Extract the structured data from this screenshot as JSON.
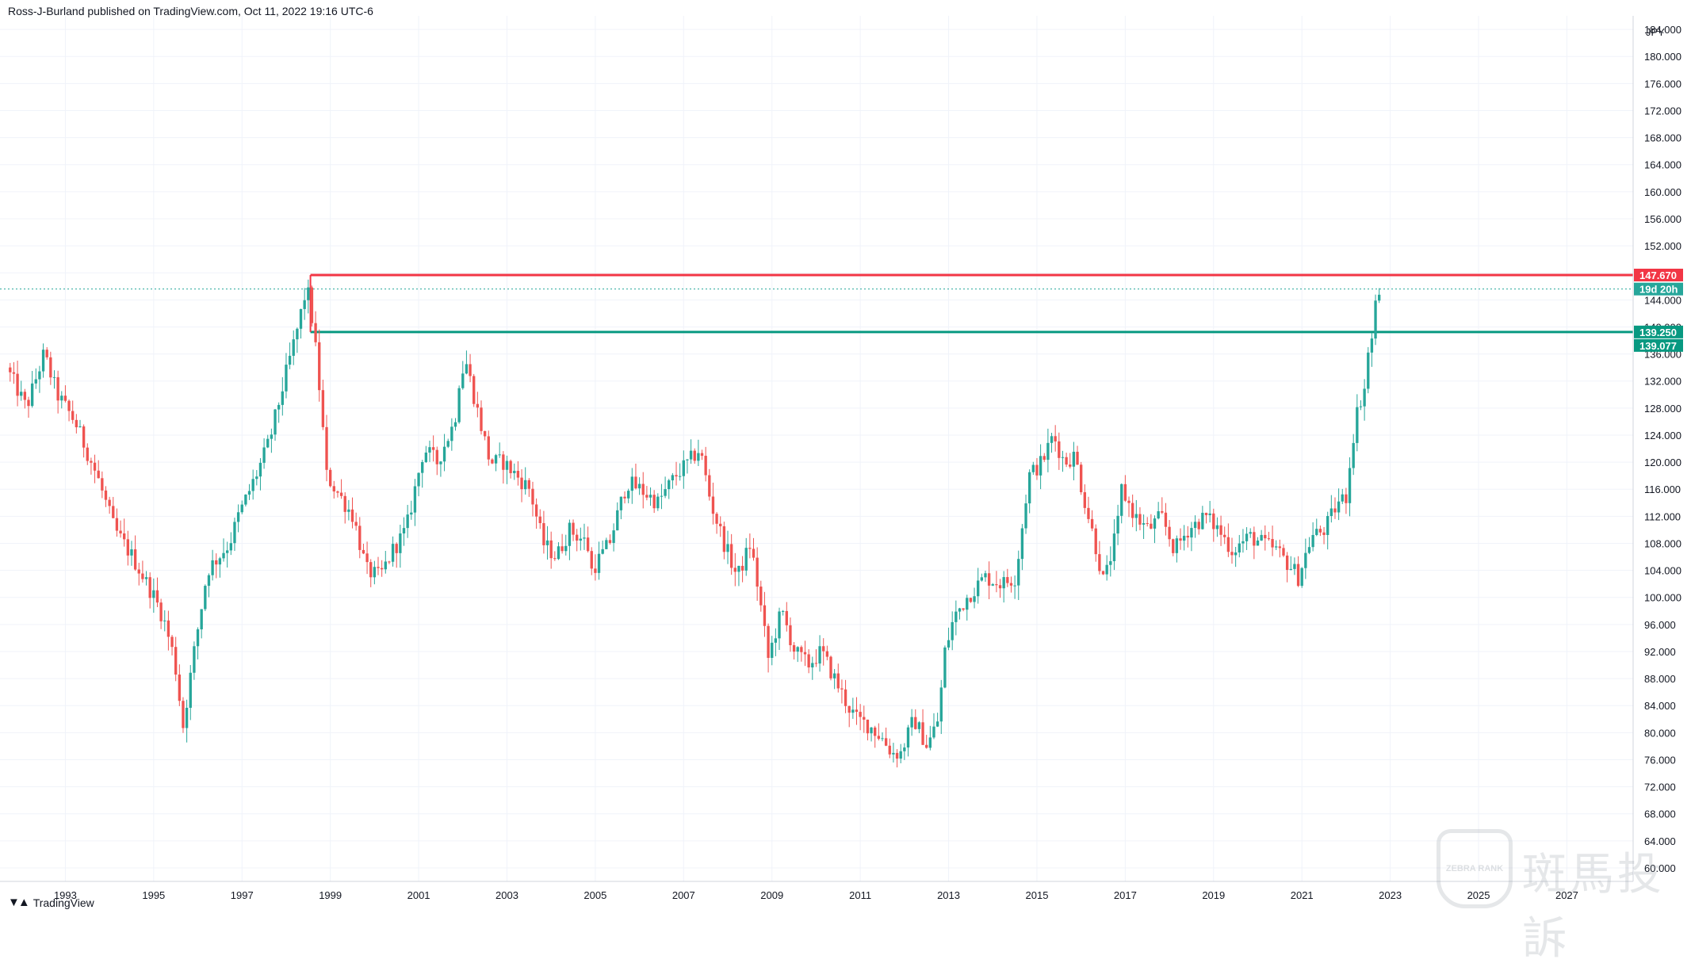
{
  "header": {
    "text": "Ross-J-Burland published on TradingView.com, Oct 11, 2022 19:16 UTC-6"
  },
  "footer": {
    "brand": "TradingView",
    "logo_icon": "tradingview-logo-icon"
  },
  "watermark": {
    "badge_text": "ZEBRA RANK",
    "text": "斑馬投訴"
  },
  "colors": {
    "up": "#26a69a",
    "down": "#ef5350",
    "resistance": "#f23645",
    "support": "#089981",
    "price_tag": "#26a69a",
    "grid": "#f0f3fa"
  },
  "chart_data": {
    "type": "candlestick",
    "currency": "JPY",
    "x_range": [
      1991.7,
      2028.5
    ],
    "y_range": [
      58,
      186
    ],
    "x_tick_labels": [
      "1993",
      "1995",
      "1997",
      "1999",
      "2001",
      "2003",
      "2005",
      "2007",
      "2009",
      "2011",
      "2013",
      "2015",
      "2017",
      "2019",
      "2021",
      "2023",
      "2025",
      "2027"
    ],
    "y_tick_labels": [
      "184.000",
      "180.000",
      "176.000",
      "172.000",
      "168.000",
      "164.000",
      "160.000",
      "156.000",
      "152.000",
      "148.000",
      "144.000",
      "140.000",
      "136.000",
      "132.000",
      "128.000",
      "124.000",
      "120.000",
      "116.000",
      "112.000",
      "108.000",
      "104.000",
      "100.000",
      "96.000",
      "92.000",
      "88.000",
      "84.000",
      "80.000",
      "76.000",
      "72.000",
      "68.000",
      "64.000",
      "60.000"
    ],
    "horizontal_levels": [
      {
        "price": 147.67,
        "label": "147.670",
        "color": "#f23645",
        "from": 1998.55
      },
      {
        "price": 139.25,
        "label": "139.250",
        "color": "#089981",
        "from": 1998.55
      }
    ],
    "price_tags": [
      {
        "label": "147.670",
        "price": 147.67,
        "color": "#f23645"
      },
      {
        "label": "19d 20h",
        "price": 145.6,
        "color": "#26a69a"
      },
      {
        "label": "139.250",
        "price": 139.25,
        "color": "#089981"
      },
      {
        "label": "139.077",
        "price": 139.077,
        "color": "#089981"
      }
    ],
    "last_price": 145.6,
    "path": [
      [
        1991.75,
        134
      ],
      [
        1992.2,
        128
      ],
      [
        1992.6,
        136
      ],
      [
        1992.9,
        130
      ],
      [
        1993.3,
        126
      ],
      [
        1993.8,
        118
      ],
      [
        1994.2,
        110
      ],
      [
        1994.6,
        106
      ],
      [
        1995.1,
        100
      ],
      [
        1995.3,
        97
      ],
      [
        1995.55,
        91
      ],
      [
        1995.75,
        81
      ],
      [
        1996.0,
        92
      ],
      [
        1996.3,
        104
      ],
      [
        1996.8,
        108
      ],
      [
        1997.0,
        112
      ],
      [
        1997.4,
        118
      ],
      [
        1997.7,
        123
      ],
      [
        1998.0,
        131
      ],
      [
        1998.35,
        140
      ],
      [
        1998.55,
        146
      ],
      [
        1998.7,
        140
      ],
      [
        1998.85,
        130
      ],
      [
        1999.0,
        118
      ],
      [
        1999.3,
        115
      ],
      [
        1999.6,
        112
      ],
      [
        1999.9,
        104
      ],
      [
        2000.2,
        103
      ],
      [
        2000.5,
        107
      ],
      [
        2000.8,
        110
      ],
      [
        2001.0,
        116
      ],
      [
        2001.2,
        122
      ],
      [
        2001.5,
        120
      ],
      [
        2001.9,
        126
      ],
      [
        2002.0,
        132
      ],
      [
        2002.15,
        135
      ],
      [
        2002.4,
        128
      ],
      [
        2002.7,
        120
      ],
      [
        2003.0,
        120
      ],
      [
        2003.3,
        118
      ],
      [
        2003.6,
        116
      ],
      [
        2003.9,
        108
      ],
      [
        2004.2,
        106
      ],
      [
        2004.5,
        110
      ],
      [
        2004.9,
        108
      ],
      [
        2005.0,
        104
      ],
      [
        2005.4,
        108
      ],
      [
        2005.8,
        117
      ],
      [
        2006.1,
        116
      ],
      [
        2006.5,
        114
      ],
      [
        2006.9,
        118
      ],
      [
        2007.2,
        120
      ],
      [
        2007.45,
        122
      ],
      [
        2007.7,
        114
      ],
      [
        2008.0,
        108
      ],
      [
        2008.3,
        103
      ],
      [
        2008.6,
        108
      ],
      [
        2008.8,
        100
      ],
      [
        2009.0,
        91
      ],
      [
        2009.3,
        98
      ],
      [
        2009.6,
        92
      ],
      [
        2009.9,
        90
      ],
      [
        2010.2,
        92
      ],
      [
        2010.5,
        88
      ],
      [
        2010.8,
        84
      ],
      [
        2011.0,
        82
      ],
      [
        2011.3,
        81
      ],
      [
        2011.6,
        79
      ],
      [
        2011.8,
        77
      ],
      [
        2012.0,
        77
      ],
      [
        2012.3,
        82
      ],
      [
        2012.6,
        78
      ],
      [
        2012.85,
        82
      ],
      [
        2013.0,
        92
      ],
      [
        2013.2,
        97
      ],
      [
        2013.5,
        100
      ],
      [
        2013.9,
        103
      ],
      [
        2014.3,
        102
      ],
      [
        2014.6,
        103
      ],
      [
        2014.9,
        118
      ],
      [
        2015.2,
        120
      ],
      [
        2015.45,
        124
      ],
      [
        2015.7,
        120
      ],
      [
        2015.95,
        121
      ],
      [
        2016.1,
        116
      ],
      [
        2016.4,
        108
      ],
      [
        2016.6,
        102
      ],
      [
        2016.9,
        110
      ],
      [
        2017.0,
        116
      ],
      [
        2017.3,
        112
      ],
      [
        2017.6,
        110
      ],
      [
        2017.9,
        112
      ],
      [
        2018.2,
        107
      ],
      [
        2018.5,
        110
      ],
      [
        2018.9,
        112
      ],
      [
        2019.2,
        110
      ],
      [
        2019.5,
        107
      ],
      [
        2019.9,
        109
      ],
      [
        2020.2,
        108
      ],
      [
        2020.5,
        107
      ],
      [
        2020.9,
        104
      ],
      [
        2021.0,
        103
      ],
      [
        2021.3,
        109
      ],
      [
        2021.6,
        110
      ],
      [
        2021.9,
        114
      ],
      [
        2022.1,
        115
      ],
      [
        2022.2,
        122
      ],
      [
        2022.35,
        128
      ],
      [
        2022.5,
        131
      ],
      [
        2022.6,
        137
      ],
      [
        2022.7,
        139
      ],
      [
        2022.78,
        145.6
      ]
    ]
  }
}
